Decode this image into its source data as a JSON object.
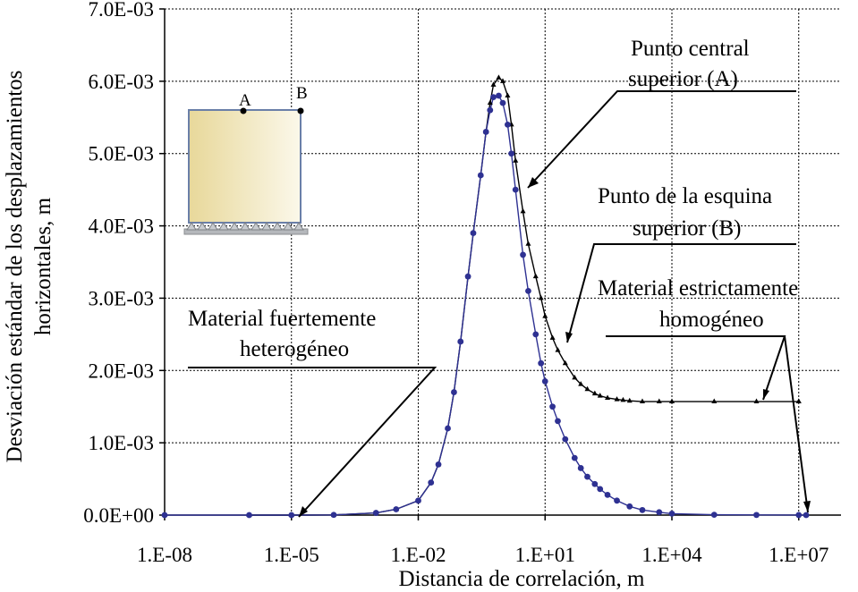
{
  "chart_data": {
    "type": "line",
    "xlabel": "Distancia de correlación, m",
    "ylabel_line1": "Desviación estándar de los desplazamientos",
    "ylabel_line2": "horizontales, m",
    "x_scale": "log",
    "xlim": [
      1e-08,
      100000000.0
    ],
    "ylim": [
      0,
      0.007
    ],
    "x_ticks": [
      1e-08,
      1e-05,
      0.01,
      10,
      10000.0,
      10000000.0
    ],
    "x_tick_labels": [
      "1.E-08",
      "1.E-05",
      "1.E-02",
      "1.E+01",
      "1.E+04",
      "1.E+07"
    ],
    "y_ticks": [
      0,
      0.001,
      0.002,
      0.003,
      0.004,
      0.005,
      0.006,
      0.007
    ],
    "y_tick_labels": [
      "0.0E+00",
      "1.0E-03",
      "2.0E-03",
      "3.0E-03",
      "4.0E-03",
      "5.0E-03",
      "6.0E-03",
      "7.0E-03"
    ],
    "grid": "dashed, both axes",
    "series": [
      {
        "marker": "triangle",
        "color": "#000000",
        "x": [
          1e-06,
          1e-05,
          0.0001,
          0.001,
          0.003,
          0.01,
          0.02,
          0.03,
          0.05,
          0.07,
          0.1,
          0.15,
          0.2,
          0.3,
          0.4,
          0.5,
          0.6,
          0.8,
          1,
          1.3,
          1.6,
          2,
          3,
          4,
          6,
          8,
          10,
          15,
          20,
          30,
          50,
          70,
          100,
          150,
          200,
          300,
          500,
          700,
          1000,
          2000,
          5000,
          10000.0,
          100000.0,
          1000000.0,
          10000000.0,
          10000000.0
        ],
        "y": [
          0,
          0,
          3e-06,
          3e-05,
          8e-05,
          0.0002,
          0.00045,
          0.0007,
          0.0012,
          0.0017,
          0.0024,
          0.0033,
          0.0039,
          0.0047,
          0.0053,
          0.0057,
          0.00595,
          0.00605,
          0.006,
          0.0058,
          0.0054,
          0.0049,
          0.0042,
          0.00375,
          0.0033,
          0.003,
          0.00275,
          0.00245,
          0.00228,
          0.0021,
          0.0019,
          0.00181,
          0.00174,
          0.00168,
          0.00165,
          0.00162,
          0.0016,
          0.00159,
          0.00158,
          0.00157,
          0.00157,
          0.00157,
          0.00157,
          0.00157,
          0.00157,
          0.00157
        ]
      },
      {
        "marker": "circle",
        "color": "#2e3192",
        "x": [
          1e-08,
          1e-06,
          1e-05,
          0.0001,
          0.001,
          0.003,
          0.01,
          0.02,
          0.03,
          0.05,
          0.07,
          0.1,
          0.15,
          0.2,
          0.3,
          0.4,
          0.5,
          0.6,
          0.8,
          1,
          1.3,
          1.6,
          2,
          3,
          4,
          6,
          8,
          10,
          15,
          20,
          30,
          50,
          70,
          100,
          150,
          200,
          300,
          500,
          1000,
          2000,
          5000,
          10000.0,
          100000.0,
          1000000.0,
          10000000.0,
          15000000.0
        ],
        "y": [
          0,
          0,
          0,
          3e-06,
          3e-05,
          8e-05,
          0.0002,
          0.00045,
          0.0007,
          0.0012,
          0.0017,
          0.0024,
          0.0033,
          0.0039,
          0.0047,
          0.0053,
          0.0056,
          0.00578,
          0.0058,
          0.0057,
          0.0054,
          0.005,
          0.0045,
          0.0036,
          0.0031,
          0.0025,
          0.0021,
          0.00185,
          0.0015,
          0.0013,
          0.00105,
          0.00079,
          0.00065,
          0.00053,
          0.00043,
          0.00036,
          0.00028,
          0.0002,
          0.00012,
          7e-05,
          4e-05,
          2e-05,
          5e-06,
          2e-06,
          1e-06,
          0
        ]
      }
    ],
    "annotations": {
      "central_line1": "Punto central",
      "central_line2": "superior (A)",
      "corner_line1": "Punto de la esquina",
      "corner_line2": "superior (B)",
      "homog_line1": "Material estrictamente",
      "homog_line2": "homogéneo",
      "heter_line1": "Material fuertemente",
      "heter_line2": "heterogéneo"
    },
    "inset": {
      "point_a": "A",
      "point_b": "B",
      "fill_color": "#f3e9b4"
    }
  }
}
